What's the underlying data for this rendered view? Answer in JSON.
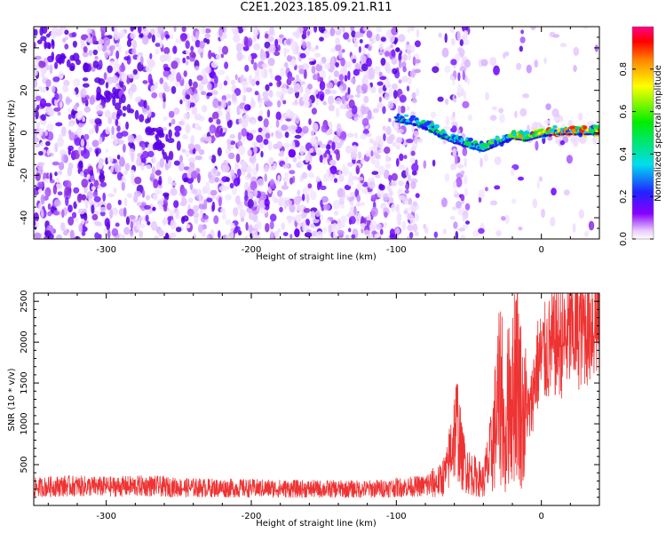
{
  "title": "C2E1.2023.185.09.21.R11",
  "chart_data": [
    {
      "type": "heatmap",
      "xlabel": "Height of straight line (km)",
      "ylabel": "Frequency (Hz)",
      "xlim": [
        -350,
        40
      ],
      "ylim": [
        -50,
        50
      ],
      "xticks": [
        -300,
        -200,
        -100,
        0
      ],
      "xtick_labels": [
        "-300",
        "-200",
        "-100",
        "0"
      ],
      "yticks": [
        -40,
        -20,
        0,
        20,
        40
      ],
      "ytick_labels": [
        "-40",
        "-20",
        "0",
        "20",
        "40"
      ],
      "colorbar": {
        "label": "Normalized spectral amplitude",
        "range": [
          0,
          1
        ],
        "ticks": [
          0,
          0.2,
          0.4,
          0.6,
          0.8
        ],
        "tick_labels": [
          "0.0",
          "0.2",
          "0.4",
          "0.6",
          "0.8"
        ]
      },
      "ridge": [
        {
          "x": -100,
          "y": 7
        },
        {
          "x": -90,
          "y": 6
        },
        {
          "x": -80,
          "y": 4
        },
        {
          "x": -70,
          "y": 0
        },
        {
          "x": -60,
          "y": -3
        },
        {
          "x": -50,
          "y": -5
        },
        {
          "x": -40,
          "y": -7
        },
        {
          "x": -30,
          "y": -4
        },
        {
          "x": -20,
          "y": -1
        },
        {
          "x": -10,
          "y": -2
        },
        {
          "x": 0,
          "y": 0
        },
        {
          "x": 10,
          "y": 1
        },
        {
          "x": 20,
          "y": 1
        },
        {
          "x": 30,
          "y": 1
        },
        {
          "x": 40,
          "y": 1
        }
      ]
    },
    {
      "type": "line",
      "xlabel": "Height of straight line (km)",
      "ylabel": "SNR (10 * v/v)",
      "xlim": [
        -350,
        40
      ],
      "ylim": [
        0,
        2600
      ],
      "xticks": [
        -300,
        -200,
        -100,
        0
      ],
      "xtick_labels": [
        "-300",
        "-200",
        "-100",
        "0"
      ],
      "yticks": [
        500,
        1000,
        1500,
        2000,
        2500
      ],
      "ytick_labels": [
        "500",
        "1000",
        "1500",
        "2000",
        "2500"
      ],
      "line_color": "#ee3333",
      "series": [
        {
          "name": "SNR",
          "x": [
            -350,
            -330,
            -300,
            -270,
            -250,
            -200,
            -150,
            -120,
            -100,
            -80,
            -70,
            -65,
            -62,
            -58,
            -55,
            -50,
            -45,
            -40,
            -35,
            -30,
            -27,
            -25,
            -22,
            -20,
            -18,
            -15,
            -12,
            -10,
            -8,
            -5,
            -3,
            0,
            5,
            10,
            15,
            20,
            25,
            30,
            35,
            40
          ],
          "y": [
            220,
            240,
            230,
            240,
            220,
            210,
            200,
            200,
            220,
            240,
            300,
            420,
            750,
            1000,
            600,
            420,
            350,
            300,
            600,
            1200,
            1500,
            500,
            1600,
            1200,
            1800,
            1400,
            1000,
            1200,
            1100,
            1500,
            1700,
            1800,
            1900,
            2000,
            2000,
            2100,
            2150,
            2200,
            2250,
            2300
          ]
        }
      ]
    }
  ]
}
